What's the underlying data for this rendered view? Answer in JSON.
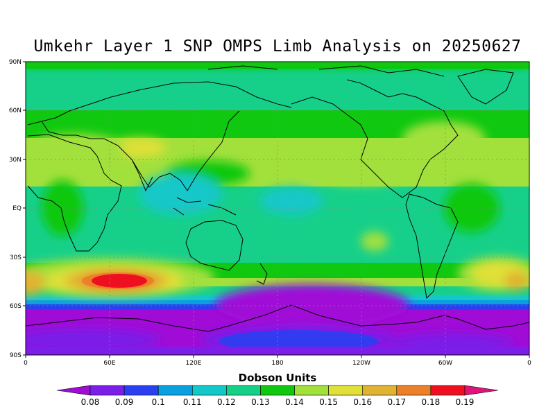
{
  "title": "Umkehr Layer 1 SNP OMPS Limb Analysis on 20250627",
  "colorbar": {
    "title": "Dobson Units",
    "labels": [
      "0.08",
      "0.09",
      "0.1",
      "0.11",
      "0.12",
      "0.13",
      "0.14",
      "0.15",
      "0.16",
      "0.17",
      "0.18",
      "0.19"
    ],
    "colors": [
      "#a00cd6",
      "#7a1ee8",
      "#2a3ff0",
      "#0aa0e0",
      "#12c8c8",
      "#16d08a",
      "#10c810",
      "#a2e03c",
      "#e0e038",
      "#e0b432",
      "#ec8028",
      "#ee1020",
      "#e01478"
    ]
  },
  "map": {
    "lat_labels": [
      "90N",
      "60N",
      "30N",
      "EQ",
      "30S",
      "60S",
      "90S"
    ],
    "lon_labels": [
      "0",
      "60E",
      "120E",
      "180",
      "120W",
      "60W",
      "0"
    ],
    "grid": "dotted, 30° spacing"
  }
}
